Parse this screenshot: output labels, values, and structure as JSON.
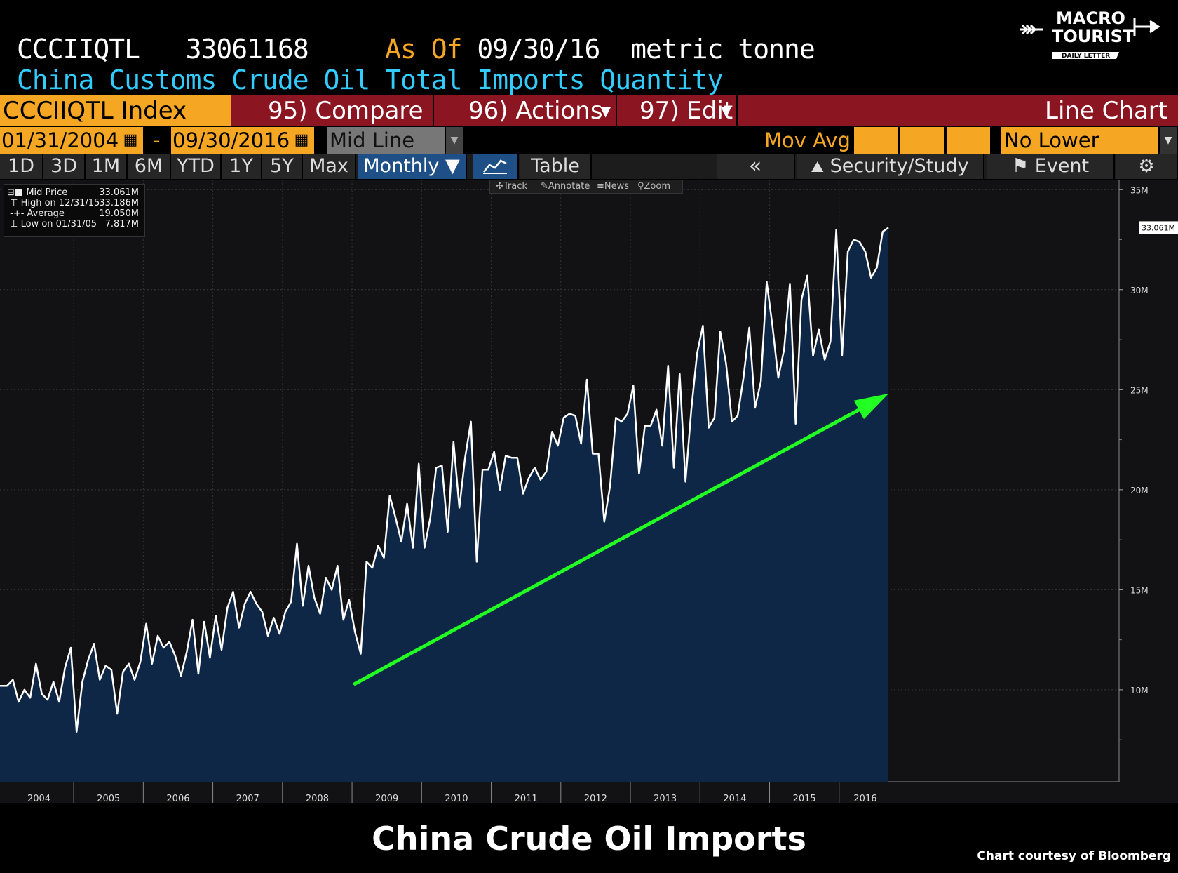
{
  "header": {
    "ticker": "CCCIIQTL",
    "value": "33061168",
    "as_of_label": "As Of",
    "as_of_date": "09/30/16",
    "unit": "metric tonne",
    "description": "China Customs Crude Oil Total Imports Quantity"
  },
  "logo": {
    "line1": "MACRO",
    "line2": "TOURIST",
    "line3": "DAILY LETTER"
  },
  "toolbar": {
    "index": "CCCIIQTL Index",
    "compare": "95) Compare",
    "actions": "96) Actions",
    "edit": "97) Edit",
    "chart_type": "Line Chart"
  },
  "range": {
    "start": "01/31/2004",
    "dash": "-",
    "end": "09/30/2016",
    "mode": "Mid Line",
    "mov_avg": "Mov Avg",
    "lower": "No Lower Chart"
  },
  "periods": [
    "1D",
    "3D",
    "1M",
    "6M",
    "YTD",
    "1Y",
    "5Y",
    "Max"
  ],
  "frequency": "Monthly ▼",
  "table_label": "Table",
  "security_study": "Security/Study",
  "event": "Event",
  "tools": [
    "Track",
    "Annotate",
    "News",
    "Zoom"
  ],
  "legend": [
    {
      "label": "Mid Price",
      "value": "33.061M"
    },
    {
      "label": "High on 12/31/15",
      "value": "33.186M"
    },
    {
      "label": "Average",
      "value": "19.050M"
    },
    {
      "label": "Low on 01/31/05",
      "value": "7.817M"
    }
  ],
  "last_value_label": "33.061M",
  "footer": {
    "title": "China Crude Oil Imports",
    "credit": "Chart courtesy of Bloomberg"
  },
  "colors": {
    "line": "#ffffff",
    "fill": "#0e2747",
    "trend": "#22ff22",
    "orange": "#f5a623",
    "cyan": "#33ccff"
  },
  "chart_data": {
    "type": "area",
    "start": "2004-01",
    "frequency": "monthly",
    "x_ticks": [
      "2004",
      "2005",
      "2006",
      "2007",
      "2008",
      "2009",
      "2010",
      "2011",
      "2012",
      "2013",
      "2014",
      "2015",
      "2016"
    ],
    "y_ticks": [
      "10M",
      "15M",
      "20M",
      "25M",
      "30M",
      "35M"
    ],
    "ylim": [
      5.4,
      35.5
    ],
    "series": [
      {
        "unit": "M",
        "values": [
          10.2,
          10.5,
          9.4,
          10.0,
          9.6,
          11.3,
          9.8,
          9.5,
          10.4,
          9.4,
          11.1,
          12.1,
          7.9,
          10.4,
          11.5,
          12.3,
          10.5,
          11.2,
          11.0,
          8.8,
          10.9,
          11.3,
          10.5,
          11.4,
          13.3,
          11.3,
          12.7,
          12.1,
          12.4,
          11.7,
          10.7,
          11.9,
          13.5,
          10.8,
          13.4,
          11.6,
          13.7,
          12.0,
          14.1,
          14.9,
          13.1,
          14.3,
          14.9,
          14.3,
          13.9,
          12.7,
          13.6,
          12.8,
          13.9,
          14.4,
          17.3,
          14.2,
          16.2,
          14.6,
          13.8,
          15.6,
          15.0,
          16.2,
          13.5,
          14.5,
          12.9,
          11.8,
          16.4,
          16.1,
          17.2,
          16.6,
          19.7,
          18.6,
          17.4,
          19.3,
          17.1,
          21.3,
          17.1,
          18.6,
          21.1,
          21.2,
          17.9,
          22.4,
          19.1,
          21.6,
          23.4,
          16.4,
          21.0,
          21.0,
          21.9,
          20.0,
          21.7,
          21.6,
          21.6,
          19.8,
          20.6,
          21.1,
          20.5,
          20.9,
          22.9,
          22.2,
          23.6,
          23.8,
          23.7,
          22.3,
          25.5,
          21.8,
          21.8,
          18.4,
          20.2,
          23.6,
          23.4,
          23.8,
          25.2,
          20.8,
          23.2,
          23.2,
          24.0,
          22.2,
          26.2,
          21.1,
          25.8,
          20.4,
          24.0,
          26.8,
          28.2,
          23.1,
          23.6,
          27.9,
          26.3,
          23.4,
          23.7,
          25.6,
          28.1,
          24.1,
          25.4,
          30.4,
          28.2,
          25.6,
          27.0,
          30.3,
          23.3,
          29.5,
          30.7,
          26.7,
          28.0,
          26.5,
          27.4,
          33.0,
          26.7,
          31.9,
          32.5,
          32.4,
          31.9,
          30.6,
          31.1,
          32.9,
          33.1
        ]
      }
    ],
    "trend_arrow": {
      "from": [
        "2009-01",
        10.3
      ],
      "to": [
        "2016-09",
        24.8
      ]
    }
  }
}
